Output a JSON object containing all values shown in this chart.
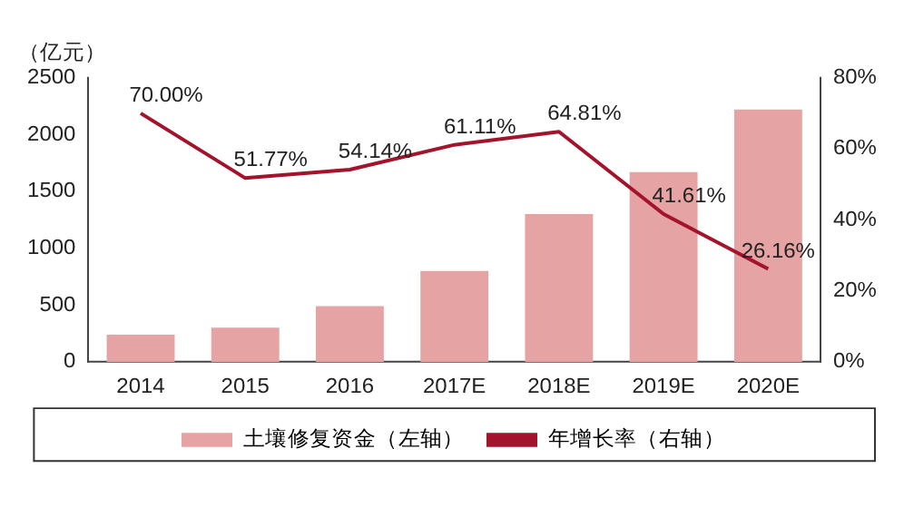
{
  "chart_data": {
    "type": "bar",
    "ylabel": "（亿元）",
    "categories": [
      "2014",
      "2015",
      "2016",
      "2017E",
      "2018E",
      "2019E",
      "2020E"
    ],
    "series": [
      {
        "name": "土壤修复资金（左轴）",
        "color": "#e6a3a3",
        "values": [
          240,
          300,
          490,
          800,
          1300,
          1670,
          2220
        ]
      },
      {
        "name": "年增长率（右轴）",
        "type": "line",
        "axis": "y2",
        "color": "#a3142c",
        "values": [
          70.0,
          51.77,
          54.14,
          61.11,
          64.81,
          41.61,
          26.16
        ],
        "value_labels": [
          "70.00%",
          "51.77%",
          "54.14%",
          "61.11%",
          "64.81%",
          "41.61%",
          "26.16%"
        ]
      }
    ],
    "ylim": [
      0,
      2500
    ],
    "yticks": [
      0,
      500,
      1000,
      1500,
      2000,
      2500
    ],
    "y2lim": [
      0,
      80
    ],
    "y2ticks": [
      {
        "value": 0,
        "label": "0%"
      },
      {
        "value": 20,
        "label": "20%"
      },
      {
        "value": 40,
        "label": "40%"
      },
      {
        "value": 60,
        "label": "60%"
      },
      {
        "value": 80,
        "label": "80%"
      }
    ],
    "grid": false,
    "legend": "bottom",
    "marker": "none",
    "line_style": "solid"
  }
}
